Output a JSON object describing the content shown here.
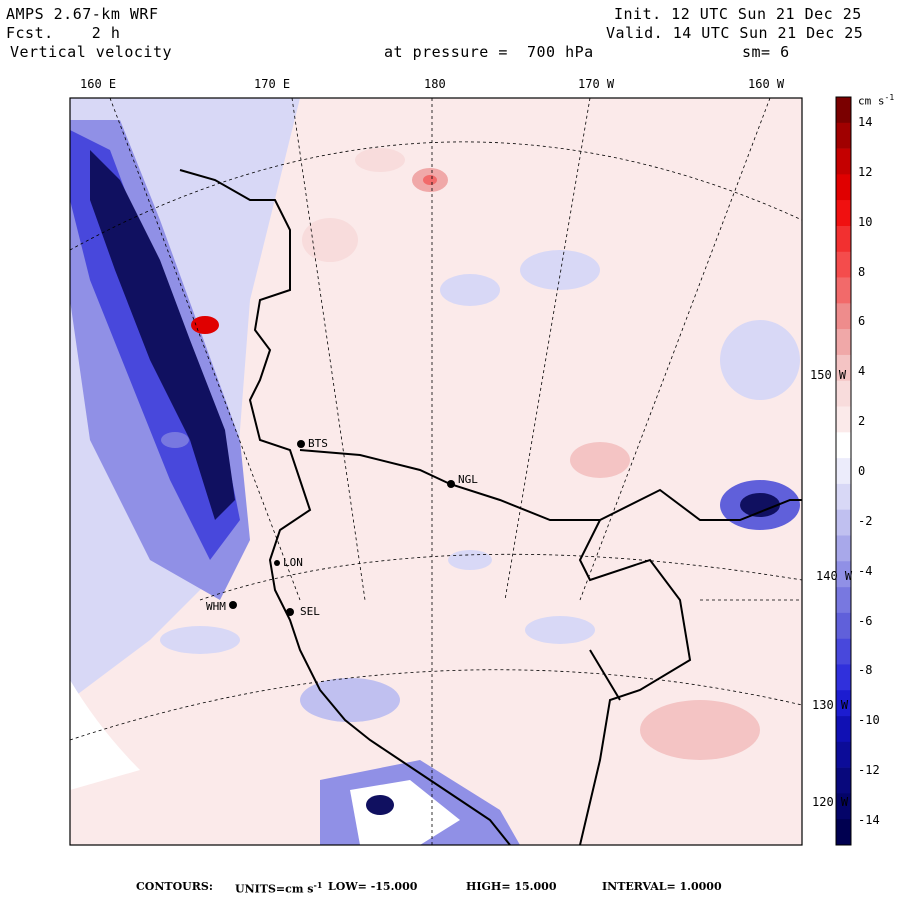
{
  "header": {
    "model": "AMPS 2.67-km WRF",
    "fcst_label": "Fcst.",
    "fcst_value": "2 h",
    "field": "Vertical velocity",
    "init": "Init. 12 UTC Sun 21 Dec 25",
    "valid": "Valid. 14 UTC Sun 21 Dec 25",
    "pressure_label": "at pressure =",
    "pressure_value": "700 hPa",
    "smoothing": "sm= 6"
  },
  "longitude_labels": [
    "160 E",
    "170 E",
    "180",
    "170 W",
    "160 W"
  ],
  "latitude_labels": [
    "150 W",
    "140 W",
    "130 W",
    "120 W"
  ],
  "stations": [
    "BTS",
    "NGL",
    "LON",
    "WHM",
    "SEL"
  ],
  "colorbar": {
    "unit": "cm s",
    "unit_exp": "-1",
    "ticks": [
      "14",
      "12",
      "10",
      "8",
      "6",
      "4",
      "2",
      "0",
      "-2",
      "-4",
      "-6",
      "-8",
      "-10",
      "-12",
      "-14"
    ],
    "colors": [
      "#7a0000",
      "#a00000",
      "#c40000",
      "#e00000",
      "#f01010",
      "#f23030",
      "#f44c4c",
      "#f26a6a",
      "#ee8c8c",
      "#f0a8a8",
      "#f4c4c4",
      "#f8dcdc",
      "#fbeaea",
      "#ffffff",
      "#ececfb",
      "#d8d8f6",
      "#c0c0f0",
      "#a8a8ea",
      "#9090e6",
      "#7878e0",
      "#6060da",
      "#4848dc",
      "#3030dc",
      "#1c1cd0",
      "#1010b4",
      "#0c0c98",
      "#08087c",
      "#040468",
      "#000050"
    ]
  },
  "footer": {
    "contours": "CONTOURS:",
    "units_label": "UNITS=cm s",
    "units_exp": "-1",
    "low": "LOW= -15.000",
    "high": "HIGH= 15.000",
    "interval": "INTERVAL= 1.0000"
  }
}
